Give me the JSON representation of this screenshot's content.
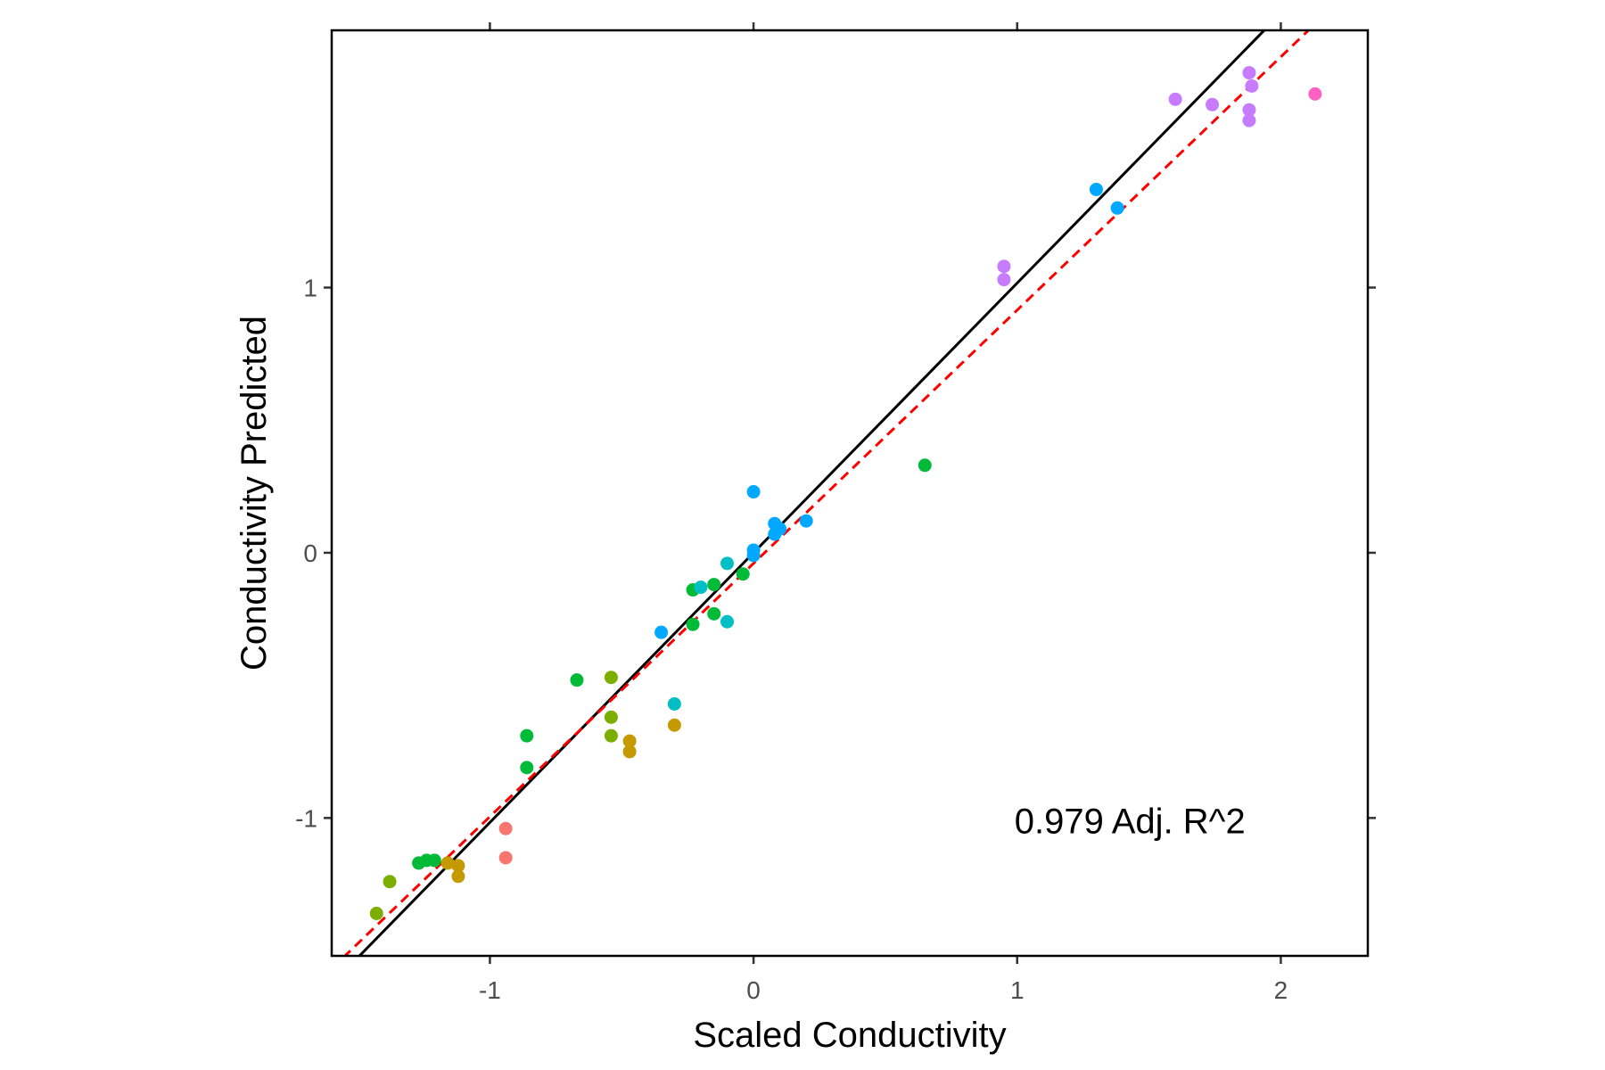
{
  "chart_data": {
    "type": "scatter",
    "xlabel": "Scaled Conductivity",
    "ylabel": "Conductivity Predicted",
    "xlim": [
      -1.6,
      2.33
    ],
    "ylim": [
      -1.52,
      1.97
    ],
    "x_ticks": [
      -1,
      0,
      1,
      2
    ],
    "y_ticks": [
      -1,
      0,
      1
    ],
    "x_tick_labels": [
      "-1",
      "0",
      "1",
      "2"
    ],
    "y_tick_labels": [
      "-1",
      "0",
      "1"
    ],
    "annotation": "0.979 Adj. R^2",
    "annotation_position": {
      "x": 1.0,
      "y": -1.01
    },
    "grid": false,
    "legend": "none",
    "lines": [
      {
        "style": "solid",
        "color": "#000000",
        "slope": 1.017,
        "intercept": 0.0
      },
      {
        "style": "dashed",
        "color": "#ff0000",
        "slope": 0.955,
        "intercept": -0.04
      }
    ],
    "points": [
      {
        "x": -0.94,
        "y": -1.04,
        "color": "#f8766d"
      },
      {
        "x": -0.94,
        "y": -1.15,
        "color": "#f8766d"
      },
      {
        "x": -1.12,
        "y": -1.18,
        "color": "#c49a00"
      },
      {
        "x": -1.12,
        "y": -1.22,
        "color": "#c49a00"
      },
      {
        "x": -1.16,
        "y": -1.17,
        "color": "#c49a00"
      },
      {
        "x": -0.47,
        "y": -0.71,
        "color": "#c49a00"
      },
      {
        "x": -0.47,
        "y": -0.75,
        "color": "#c49a00"
      },
      {
        "x": -0.3,
        "y": -0.65,
        "color": "#c49a00"
      },
      {
        "x": -1.43,
        "y": -1.36,
        "color": "#7cae00"
      },
      {
        "x": -1.38,
        "y": -1.24,
        "color": "#7cae00"
      },
      {
        "x": -0.54,
        "y": -0.47,
        "color": "#7cae00"
      },
      {
        "x": -0.54,
        "y": -0.62,
        "color": "#7cae00"
      },
      {
        "x": -0.54,
        "y": -0.69,
        "color": "#7cae00"
      },
      {
        "x": -1.27,
        "y": -1.17,
        "color": "#00ba38"
      },
      {
        "x": -1.24,
        "y": -1.16,
        "color": "#00ba38"
      },
      {
        "x": -1.21,
        "y": -1.16,
        "color": "#00ba38"
      },
      {
        "x": -0.86,
        "y": -0.69,
        "color": "#00ba38"
      },
      {
        "x": -0.86,
        "y": -0.81,
        "color": "#00ba38"
      },
      {
        "x": -0.67,
        "y": -0.48,
        "color": "#00ba38"
      },
      {
        "x": -0.23,
        "y": -0.14,
        "color": "#00ba38"
      },
      {
        "x": -0.23,
        "y": -0.27,
        "color": "#00ba38"
      },
      {
        "x": -0.15,
        "y": -0.12,
        "color": "#00ba38"
      },
      {
        "x": -0.15,
        "y": -0.23,
        "color": "#00ba38"
      },
      {
        "x": -0.04,
        "y": -0.08,
        "color": "#00ba38"
      },
      {
        "x": 0.65,
        "y": 0.33,
        "color": "#00ba38"
      },
      {
        "x": -0.3,
        "y": -0.57,
        "color": "#00bfc4"
      },
      {
        "x": -0.2,
        "y": -0.13,
        "color": "#00bfc4"
      },
      {
        "x": -0.1,
        "y": -0.04,
        "color": "#00bfc4"
      },
      {
        "x": -0.1,
        "y": -0.26,
        "color": "#00bfc4"
      },
      {
        "x": -0.35,
        "y": -0.3,
        "color": "#00a9ff"
      },
      {
        "x": 0.0,
        "y": 0.23,
        "color": "#00a9ff"
      },
      {
        "x": 0.0,
        "y": 0.01,
        "color": "#00a9ff"
      },
      {
        "x": 0.0,
        "y": -0.01,
        "color": "#00a9ff"
      },
      {
        "x": 0.08,
        "y": 0.11,
        "color": "#00a9ff"
      },
      {
        "x": 0.1,
        "y": 0.09,
        "color": "#00a9ff"
      },
      {
        "x": 0.08,
        "y": 0.07,
        "color": "#00a9ff"
      },
      {
        "x": 0.2,
        "y": 0.12,
        "color": "#00a9ff"
      },
      {
        "x": 1.3,
        "y": 1.37,
        "color": "#00a9ff"
      },
      {
        "x": 1.38,
        "y": 1.3,
        "color": "#00a9ff"
      },
      {
        "x": 0.95,
        "y": 1.08,
        "color": "#c77cff"
      },
      {
        "x": 0.95,
        "y": 1.03,
        "color": "#c77cff"
      },
      {
        "x": 1.6,
        "y": 1.71,
        "color": "#c77cff"
      },
      {
        "x": 1.74,
        "y": 1.69,
        "color": "#c77cff"
      },
      {
        "x": 1.88,
        "y": 1.81,
        "color": "#c77cff"
      },
      {
        "x": 1.89,
        "y": 1.76,
        "color": "#c77cff"
      },
      {
        "x": 1.88,
        "y": 1.67,
        "color": "#c77cff"
      },
      {
        "x": 1.88,
        "y": 1.63,
        "color": "#c77cff"
      },
      {
        "x": 2.13,
        "y": 1.73,
        "color": "#ff61c3"
      }
    ]
  }
}
